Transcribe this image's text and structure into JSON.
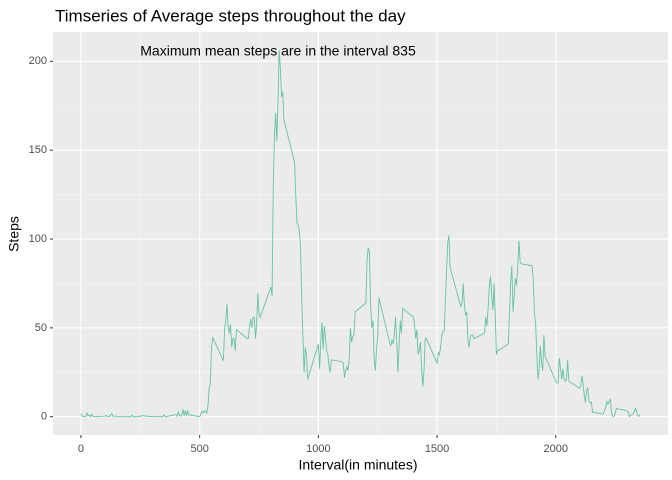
{
  "chart_data": {
    "type": "line",
    "title": "Timseries of Average steps throughout the day",
    "annotation": "Maximum mean steps are in the interval  835",
    "xlabel": "Interval(in minutes)",
    "ylabel": "Steps",
    "color": "#66c2a5",
    "xlim": [
      -117.75,
      2472.75
    ],
    "xticks": [
      0,
      500,
      1000,
      1500,
      2000
    ],
    "ylim": [
      -10.3,
      216.5
    ],
    "yticks": [
      0,
      50,
      100,
      150,
      200
    ],
    "grid": true,
    "x": [
      0,
      5,
      10,
      15,
      20,
      25,
      30,
      35,
      40,
      45,
      50,
      55,
      100,
      105,
      110,
      115,
      120,
      125,
      130,
      135,
      140,
      145,
      150,
      155,
      200,
      205,
      210,
      215,
      220,
      225,
      230,
      235,
      240,
      245,
      250,
      255,
      300,
      305,
      310,
      315,
      320,
      325,
      330,
      335,
      340,
      345,
      350,
      355,
      400,
      405,
      410,
      415,
      420,
      425,
      430,
      435,
      440,
      445,
      450,
      455,
      500,
      505,
      510,
      515,
      520,
      525,
      530,
      535,
      540,
      545,
      550,
      555,
      600,
      605,
      610,
      615,
      620,
      625,
      630,
      635,
      640,
      645,
      650,
      655,
      700,
      705,
      710,
      715,
      720,
      725,
      730,
      735,
      740,
      745,
      750,
      755,
      800,
      805,
      810,
      815,
      820,
      825,
      830,
      835,
      840,
      845,
      850,
      855,
      900,
      905,
      910,
      915,
      920,
      925,
      930,
      935,
      940,
      945,
      950,
      955,
      1000,
      1005,
      1010,
      1015,
      1020,
      1025,
      1030,
      1035,
      1040,
      1045,
      1050,
      1055,
      1100,
      1105,
      1110,
      1115,
      1120,
      1125,
      1130,
      1135,
      1140,
      1145,
      1150,
      1155,
      1200,
      1205,
      1210,
      1215,
      1220,
      1225,
      1230,
      1235,
      1240,
      1245,
      1250,
      1255,
      1300,
      1305,
      1310,
      1315,
      1320,
      1325,
      1330,
      1335,
      1340,
      1345,
      1350,
      1355,
      1400,
      1405,
      1410,
      1415,
      1420,
      1425,
      1430,
      1435,
      1440,
      1445,
      1450,
      1455,
      1500,
      1505,
      1510,
      1515,
      1520,
      1525,
      1530,
      1535,
      1540,
      1545,
      1550,
      1555,
      1600,
      1605,
      1610,
      1615,
      1620,
      1625,
      1630,
      1635,
      1640,
      1645,
      1650,
      1655,
      1700,
      1705,
      1710,
      1715,
      1720,
      1725,
      1730,
      1735,
      1740,
      1745,
      1750,
      1755,
      1800,
      1805,
      1810,
      1815,
      1820,
      1825,
      1830,
      1835,
      1840,
      1845,
      1850,
      1855,
      1900,
      1905,
      1910,
      1915,
      1920,
      1925,
      1930,
      1935,
      1940,
      1945,
      1950,
      1955,
      2000,
      2005,
      2010,
      2015,
      2020,
      2025,
      2030,
      2035,
      2040,
      2045,
      2050,
      2055,
      2100,
      2105,
      2110,
      2115,
      2120,
      2125,
      2130,
      2135,
      2140,
      2145,
      2150,
      2155,
      2200,
      2205,
      2210,
      2215,
      2220,
      2225,
      2230,
      2235,
      2240,
      2245,
      2250,
      2255,
      2300,
      2305,
      2310,
      2315,
      2320,
      2325,
      2330,
      2335,
      2340,
      2345,
      2350,
      2355
    ],
    "values": [
      1.7,
      0.3,
      0.1,
      0.2,
      0.1,
      2.1,
      0.5,
      0.9,
      0,
      1.5,
      0.3,
      0.1,
      0.3,
      0.7,
      0.2,
      0.3,
      0,
      1.1,
      1.8,
      0.2,
      0.2,
      0.4,
      0.3,
      0,
      0,
      0,
      0,
      0.9,
      0,
      0.1,
      0,
      0,
      0,
      0.4,
      0,
      0.6,
      0,
      0,
      0,
      0,
      0,
      0.3,
      0,
      0,
      0,
      0,
      1.1,
      0,
      1.2,
      0,
      2.6,
      0.9,
      0.2,
      1.1,
      4.1,
      0.5,
      3.5,
      0.8,
      3.1,
      1.1,
      0,
      1.6,
      3,
      2.2,
      3.3,
      3,
      2.1,
      6.1,
      16,
      18.3,
      39.5,
      44.5,
      31.5,
      49.3,
      53.8,
      63.5,
      50,
      47,
      52,
      39,
      44,
      44,
      37,
      49,
      44,
      44,
      51,
      55,
      50,
      56,
      56,
      44,
      52,
      69.5,
      58,
      56,
      73,
      68,
      129,
      158,
      171,
      155,
      177,
      206.17,
      196,
      180,
      183,
      167,
      143,
      124,
      109,
      108,
      104,
      96,
      66,
      45,
      25,
      39,
      35,
      21,
      41,
      27,
      42,
      53,
      38,
      51,
      44,
      37,
      35,
      28,
      25,
      32,
      31,
      30,
      22,
      26,
      28,
      26,
      33,
      50,
      42,
      45,
      46,
      59,
      64,
      88,
      95,
      93,
      63,
      50,
      54,
      32,
      26,
      38,
      45,
      67,
      42,
      40,
      43,
      41,
      46,
      56,
      43,
      25,
      40,
      54,
      47,
      61,
      56,
      52,
      44,
      49,
      35,
      37,
      42,
      27,
      17,
      26,
      44,
      44,
      30,
      36,
      35,
      39,
      46,
      48,
      48,
      65,
      82,
      98,
      102,
      84,
      62,
      64,
      75,
      63,
      57,
      59,
      43,
      39,
      45,
      46,
      46,
      44,
      47,
      56,
      51,
      61,
      73,
      79,
      69,
      60,
      75,
      57,
      35,
      37,
      41,
      58,
      75,
      85,
      59,
      68,
      78,
      74,
      85,
      99,
      87,
      86,
      85,
      78,
      58,
      53,
      36,
      21,
      27,
      40,
      30,
      26,
      46,
      34,
      20,
      19,
      19,
      33,
      27,
      21,
      27,
      21,
      20,
      21,
      32,
      20,
      16,
      17,
      23,
      19,
      12,
      8,
      15,
      16,
      8.7,
      7.8,
      8.1,
      2.6,
      1.5,
      3.7,
      4.8,
      8.5,
      7.1,
      8.7,
      9.8,
      2.2,
      0.3,
      0.1,
      1.6,
      4.6,
      3.3,
      2.8,
      0,
      0.8,
      1,
      1.6,
      2.6,
      4.7,
      3.3,
      0.6,
      0.2,
      1.1
    ]
  }
}
